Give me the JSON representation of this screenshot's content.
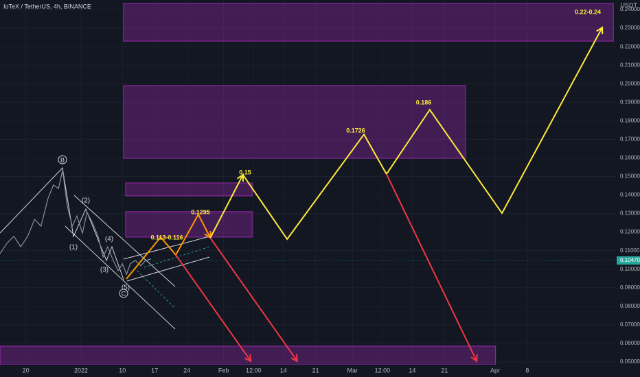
{
  "chart_data": {
    "type": "line",
    "title": "IoTeX / TetherUS, 4h, BINANCE",
    "y_label": "USDT",
    "last_price_label": "0.10470",
    "last_price": 0.1047,
    "xlim": [
      -17.61,
      116.27
    ],
    "ylim": [
      0.0485,
      0.2452
    ],
    "grid": true,
    "xticks": [
      {
        "value": -12,
        "label": "20"
      },
      {
        "value": 0,
        "label": "2022"
      },
      {
        "value": 9,
        "label": "10"
      },
      {
        "value": 16,
        "label": "17"
      },
      {
        "value": 23,
        "label": "24"
      },
      {
        "value": 31,
        "label": "Feb"
      },
      {
        "value": 37.5,
        "label": "12:00"
      },
      {
        "value": 44,
        "label": "14"
      },
      {
        "value": 51,
        "label": "21"
      },
      {
        "value": 59,
        "label": "Mar"
      },
      {
        "value": 65.5,
        "label": "12:00"
      },
      {
        "value": 72,
        "label": "14"
      },
      {
        "value": 79,
        "label": "21"
      },
      {
        "value": 90,
        "label": "Apr"
      },
      {
        "value": 97,
        "label": "8"
      }
    ],
    "yticks": [
      {
        "value": 0.05,
        "label": "0.05000"
      },
      {
        "value": 0.06,
        "label": "0.06000"
      },
      {
        "value": 0.07,
        "label": "0.07000"
      },
      {
        "value": 0.08,
        "label": "0.08000"
      },
      {
        "value": 0.09,
        "label": "0.09000"
      },
      {
        "value": 0.1,
        "label": "0.10000"
      },
      {
        "value": 0.11,
        "label": "0.11000"
      },
      {
        "value": 0.12,
        "label": "0.12000"
      },
      {
        "value": 0.13,
        "label": "0.13000"
      },
      {
        "value": 0.14,
        "label": "0.14000"
      },
      {
        "value": 0.15,
        "label": "0.15000"
      },
      {
        "value": 0.16,
        "label": "0.16000"
      },
      {
        "value": 0.17,
        "label": "0.17000"
      },
      {
        "value": 0.18,
        "label": "0.18000"
      },
      {
        "value": 0.19,
        "label": "0.19000"
      },
      {
        "value": 0.2,
        "label": "0.20000"
      },
      {
        "value": 0.21,
        "label": "0.21000"
      },
      {
        "value": 0.22,
        "label": "0.22000"
      },
      {
        "value": 0.23,
        "label": "0.23000"
      },
      {
        "value": 0.24,
        "label": "0.24000"
      }
    ],
    "zones": [
      {
        "x": [
          9.25,
          115.7
        ],
        "y": [
          0.223,
          0.2433
        ]
      },
      {
        "x": [
          9.25,
          83.6
        ],
        "y": [
          0.1598,
          0.199
        ]
      },
      {
        "x": [
          9.7,
          37.2
        ],
        "y": [
          0.1395,
          0.1465
        ]
      },
      {
        "x": [
          9.7,
          37.2
        ],
        "y": [
          0.1173,
          0.131
        ]
      },
      {
        "x": [
          -17.6,
          90.1
        ],
        "y": [
          0.0485,
          0.0585
        ]
      }
    ],
    "zone_color": "#9c27b0",
    "series": [
      {
        "color": "#8a8f9c",
        "x": [
          -17.6,
          -16.1,
          -14.6,
          -13.1,
          -11.6,
          -10.1,
          -8.7,
          -7.2,
          -6.0,
          -4.9,
          -4.0,
          -3.0,
          -1.9,
          -0.9,
          0.3,
          1.3,
          2.5,
          3.7,
          4.8,
          5.8,
          7.0,
          8.1,
          9.0,
          9.9,
          10.7,
          11.8,
          13.0,
          14.0,
          15.2
        ],
        "values": [
          0.1084,
          0.114,
          0.1177,
          0.1121,
          0.1177,
          0.1269,
          0.1232,
          0.138,
          0.1454,
          0.1435,
          0.1535,
          0.1343,
          0.1232,
          0.1287,
          0.1195,
          0.1306,
          0.125,
          0.1177,
          0.1066,
          0.1121,
          0.1047,
          0.0992,
          0.1029,
          0.0973,
          0.1029,
          0.1047,
          0.1018,
          0.1047,
          0.1055
        ]
      },
      {
        "color": "#ff9800",
        "x": [
          9.85,
          17.31,
          20.6,
          25.5,
          28.1
        ],
        "values": [
          0.0947,
          0.1173,
          0.1077,
          0.1295,
          0.1169
        ]
      },
      {
        "color": "#ffeb3b",
        "x": [
          28.1,
          35.2,
          44.8,
          61.5,
          66.4,
          75.8,
          91.5,
          113.3
        ],
        "values": [
          0.1169,
          0.1509,
          0.1162,
          0.1727,
          0.1513,
          0.186,
          0.1302,
          0.2304
        ]
      },
      {
        "color": "#f23645",
        "x": [
          20.6,
          36.9
        ],
        "values": [
          0.1077,
          0.0504
        ]
      },
      {
        "color": "#f23645",
        "x": [
          28.1,
          47.0
        ],
        "values": [
          0.1169,
          0.0504
        ]
      },
      {
        "color": "#f23645",
        "x": [
          66.4,
          86.0
        ],
        "values": [
          0.1513,
          0.0504
        ]
      }
    ],
    "annotations": [
      "0.22-0.24",
      "0.186",
      "0.1726",
      "0.15",
      "0.1295",
      "0.113-0.116"
    ],
    "wave_labels": [
      "B",
      "(2)",
      "(1)",
      "(4)",
      "(3)",
      "(5)",
      "C"
    ]
  }
}
